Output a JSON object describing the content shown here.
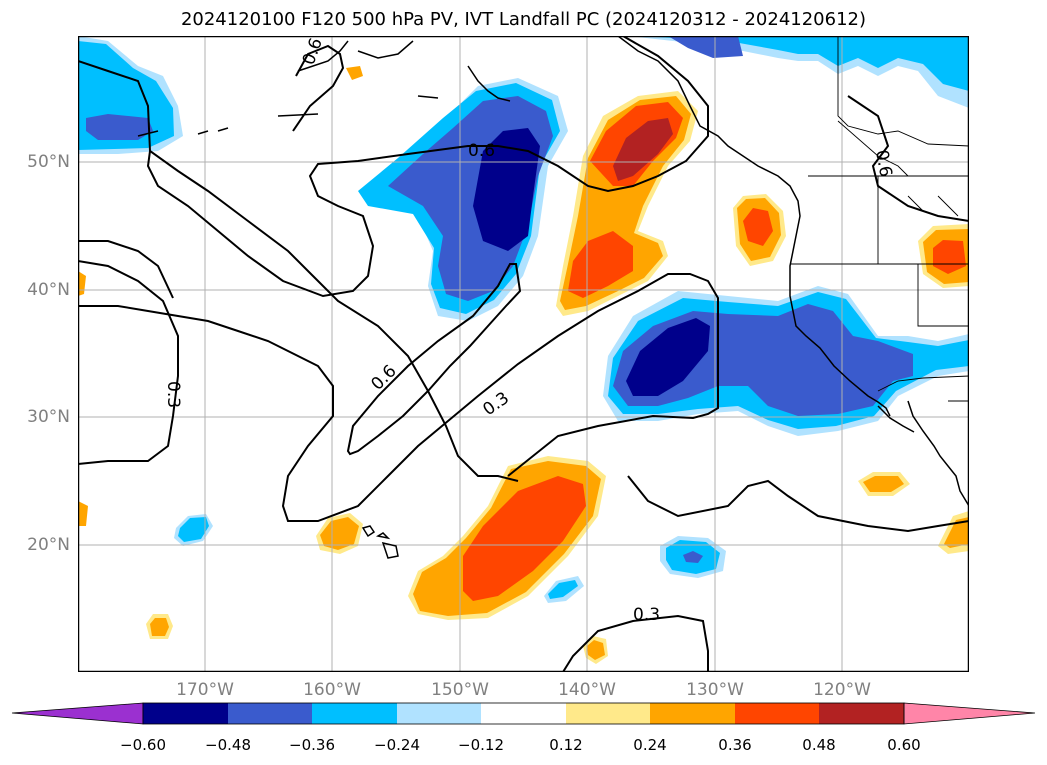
{
  "title": "2024120100 F120 500 hPa PV, IVT Landfall PC (2024120312 - 2024120612)",
  "map": {
    "lat_labels": [
      "50°N",
      "40°N",
      "30°N",
      "20°N"
    ],
    "lon_labels": [
      "170°W",
      "160°W",
      "150°W",
      "140°W",
      "130°W",
      "120°W"
    ],
    "contour_labels": [
      "0.6",
      "0.6",
      "0.6",
      "0.3",
      "0.3",
      "0.3",
      "0.6"
    ],
    "grid": true
  },
  "colorbar": {
    "ticks": [
      "−0.60",
      "−0.48",
      "−0.36",
      "−0.24",
      "−0.12",
      "0.12",
      "0.24",
      "0.36",
      "0.48",
      "0.60"
    ],
    "colors": [
      "#9b30d0",
      "#00008b",
      "#3a5bcd",
      "#00bfff",
      "#b0e2ff",
      "#ffffff",
      "#ffe98a",
      "#ffa500",
      "#ff4500",
      "#b22222",
      "#ff85a8"
    ]
  },
  "colors": {
    "dark_blue": "#00008b",
    "mid_blue": "#3a5bcd",
    "sky_blue": "#00bfff",
    "light_blue": "#b0e2ff",
    "light_yellow": "#ffe98a",
    "orange": "#ffa500",
    "orange_red": "#ff4500",
    "dark_red": "#b22222",
    "grid": "#b0b0b0",
    "label_gray": "#808080"
  }
}
